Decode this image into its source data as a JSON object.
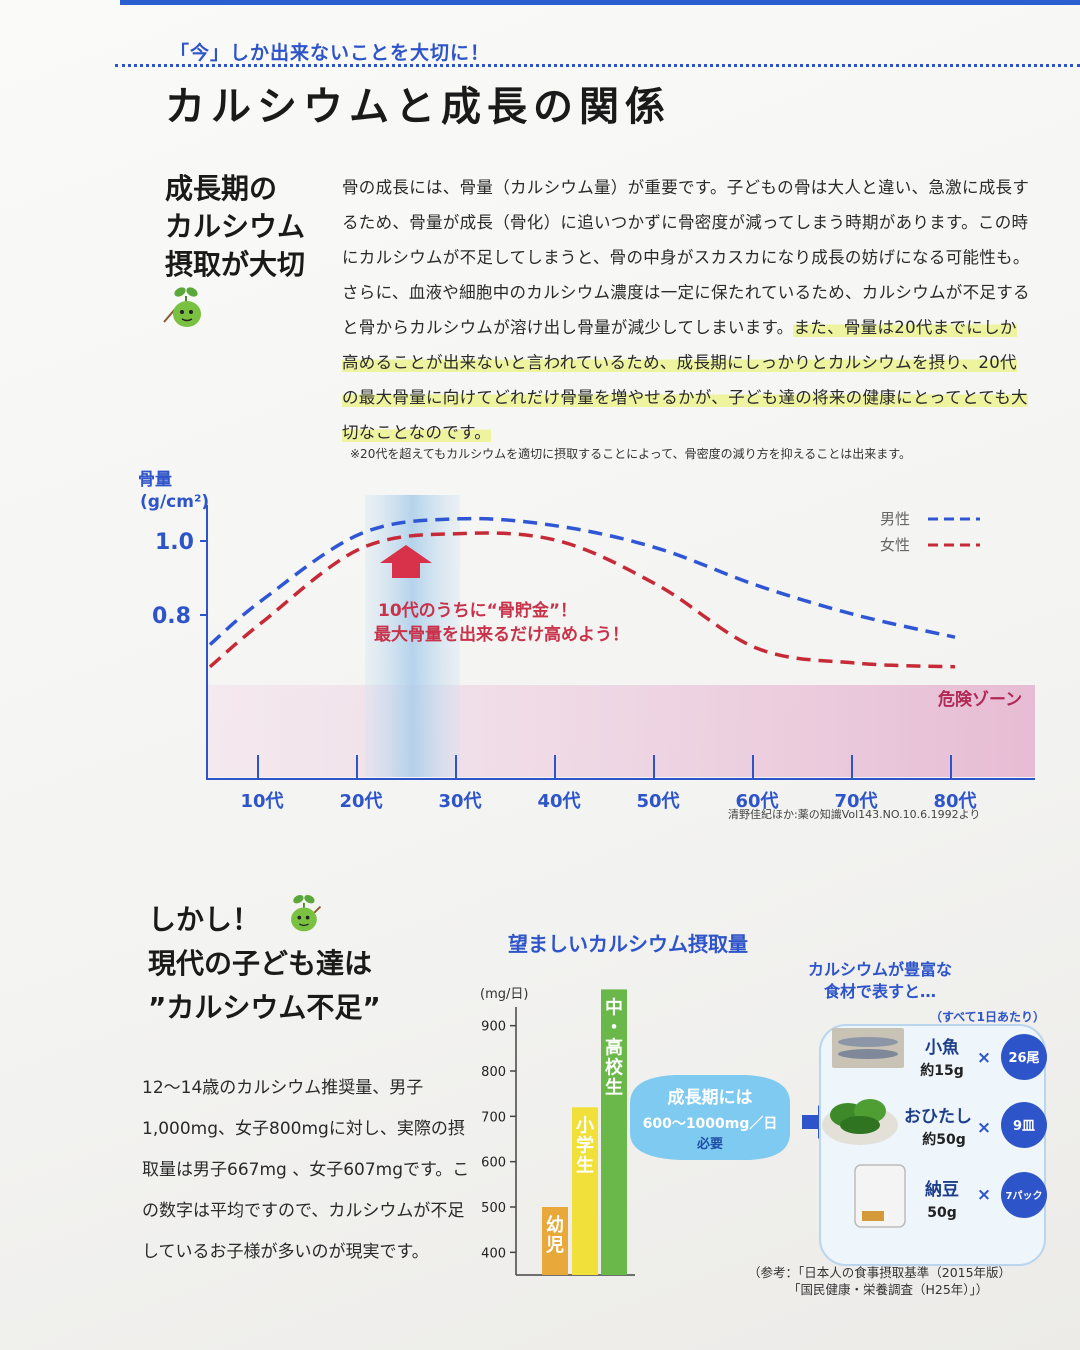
{
  "header": {
    "subheading": "「今」しか出来ないことを大切に！",
    "title": "カルシウムと成長の関係"
  },
  "section1": {
    "heading_lines": [
      "成長期の",
      "カルシウム",
      "摂取が大切"
    ],
    "paragraph_plain": "骨の成長には、骨量（カルシウム量）が重要です。子どもの骨は大人と違い、急激に成長するため、骨量が成長（骨化）に追いつかずに骨密度が減ってしまう時期があります。この時にカルシウムが不足してしまうと、骨の中身がスカスカになり成長の妨げになる可能性も。さらに、血液や細胞中のカルシウム濃度は一定に保たれているため、カルシウムが不足すると骨からカルシウムが溶け出し骨量が減少してしまいます。",
    "paragraph_highlight": "また、骨量は20代までにしか高めることが出来ないと言われているため、成長期にしっかりとカルシウムを摂り、20代の最大骨量に向けてどれだけ骨量を増やせるかが、子ども達の将来の健康にとってとても大切なことなのです。",
    "note": "※20代を超えてもカルシウムを適切に摂取することによって、骨密度の減り方を抑えることは出来ます。"
  },
  "chart_data": [
    {
      "type": "line",
      "ylabel": "骨量",
      "yunit": "(g/cm²)",
      "x": [
        "10代",
        "20代",
        "30代",
        "40代",
        "50代",
        "60代",
        "70代",
        "80代"
      ],
      "y_ticks": [
        "1.0",
        "0.8"
      ],
      "series": [
        {
          "name": "男性",
          "color": "#2f56d4",
          "values": [
            0.84,
            1.02,
            1.06,
            1.04,
            0.98,
            0.88,
            0.8,
            0.74
          ]
        },
        {
          "name": "女性",
          "color": "#c62a37",
          "values": [
            0.78,
            0.98,
            1.02,
            1.0,
            0.88,
            0.71,
            0.67,
            0.66
          ]
        }
      ],
      "annotation": [
        "10代のうちに“骨貯金”！",
        "最大骨量を出来るだけ高めよう！"
      ],
      "danger_zone_label": "危険ゾーン",
      "source": "清野佳紀ほか:薬の知識Vol143.NO.10.6.1992より"
    },
    {
      "type": "bar",
      "title": "望ましいカルシウム摂取量",
      "yunit": "(mg/日)",
      "y_ticks": [
        400,
        500,
        600,
        700,
        800,
        900
      ],
      "ylim": [
        350,
        950
      ],
      "categories": [
        "幼児",
        "小学生",
        "中・高校生"
      ],
      "values": [
        500,
        720,
        980
      ],
      "bar_colors": [
        "#e8a93a",
        "#f2e03a",
        "#6ab84a"
      ]
    }
  ],
  "bubble": {
    "line1": "成長期には",
    "line2": "600〜1000mg／日",
    "line3": "必要"
  },
  "foods": {
    "heading_lines": [
      "カルシウムが豊富な",
      "食材で表すと…"
    ],
    "per_day": "（すべて1日あたり）",
    "items": [
      {
        "name": "小魚",
        "amount": "約15g",
        "count": "26尾",
        "icon": "fish-icon"
      },
      {
        "name": "おひたし",
        "amount": "約50g",
        "count": "9皿",
        "icon": "spinach-icon"
      },
      {
        "name": "納豆",
        "amount": "50g",
        "count": "7パック",
        "icon": "natto-icon"
      }
    ],
    "times": "×"
  },
  "section2": {
    "title_lines": [
      "しかし！",
      "現代の子ども達は",
      "”カルシウム不足”"
    ],
    "body": "12〜14歳のカルシウム推奨量、男子1,000mg、女子800mgに対し、実際の摂取量は男子667mg 、女子607mgです。この数字は平均ですので、カルシウムが不足しているお子様が多いのが現実です。"
  },
  "reference": {
    "line1": "（参考：「日本人の食事摂取基準（2015年版）",
    "line2": "「国民健康・栄養調査（H25年）」）"
  }
}
